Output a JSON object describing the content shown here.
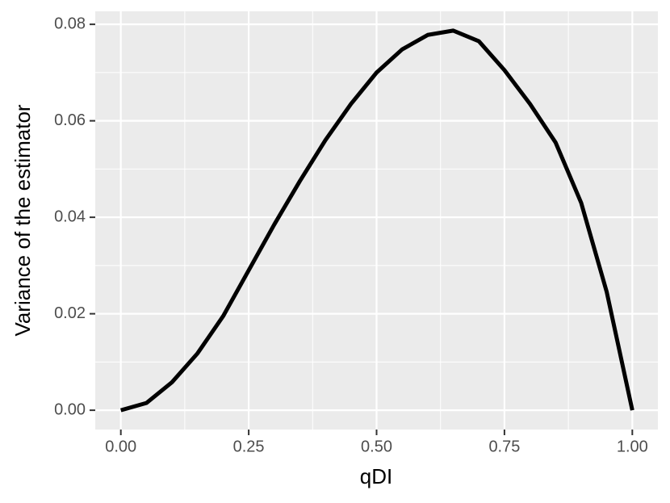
{
  "chart_data": {
    "type": "line",
    "x_label": "qDI",
    "y_label": "Variance of the estimator",
    "x": [
      0,
      0.05,
      0.1,
      0.15,
      0.2,
      0.25,
      0.3,
      0.35,
      0.4,
      0.45,
      0.5,
      0.55,
      0.6,
      0.65,
      0.7,
      0.75,
      0.8,
      0.85,
      0.9,
      0.95,
      1.0
    ],
    "series": [
      {
        "color": "#000000",
        "values": [
          0,
          0.0015,
          0.0058,
          0.0118,
          0.0195,
          0.029,
          0.0385,
          0.0475,
          0.056,
          0.0635,
          0.07,
          0.0748,
          0.0778,
          0.0787,
          0.0765,
          0.0705,
          0.0635,
          0.0555,
          0.043,
          0.0245,
          0
        ]
      }
    ],
    "xlim": [
      -0.05,
      1.05
    ],
    "xticks": [
      {
        "value": 0,
        "label": "0.00"
      },
      {
        "value": 0.25,
        "label": "0.25"
      },
      {
        "value": 0.5,
        "label": "0.50"
      },
      {
        "value": 0.75,
        "label": "0.75"
      },
      {
        "value": 1,
        "label": "1.00"
      }
    ],
    "xminor": [
      -0.125,
      0.125,
      0.375,
      0.625,
      0.875
    ],
    "ylim": [
      -0.004,
      0.0827
    ],
    "yticks": [
      {
        "value": 0,
        "label": "0.00"
      },
      {
        "value": 0.02,
        "label": "0.02"
      },
      {
        "value": 0.04,
        "label": "0.04"
      },
      {
        "value": 0.06,
        "label": "0.06"
      },
      {
        "value": 0.08,
        "label": "0.08"
      }
    ],
    "yminor": [
      0.01,
      0.03,
      0.05,
      0.07
    ],
    "grid": true
  }
}
